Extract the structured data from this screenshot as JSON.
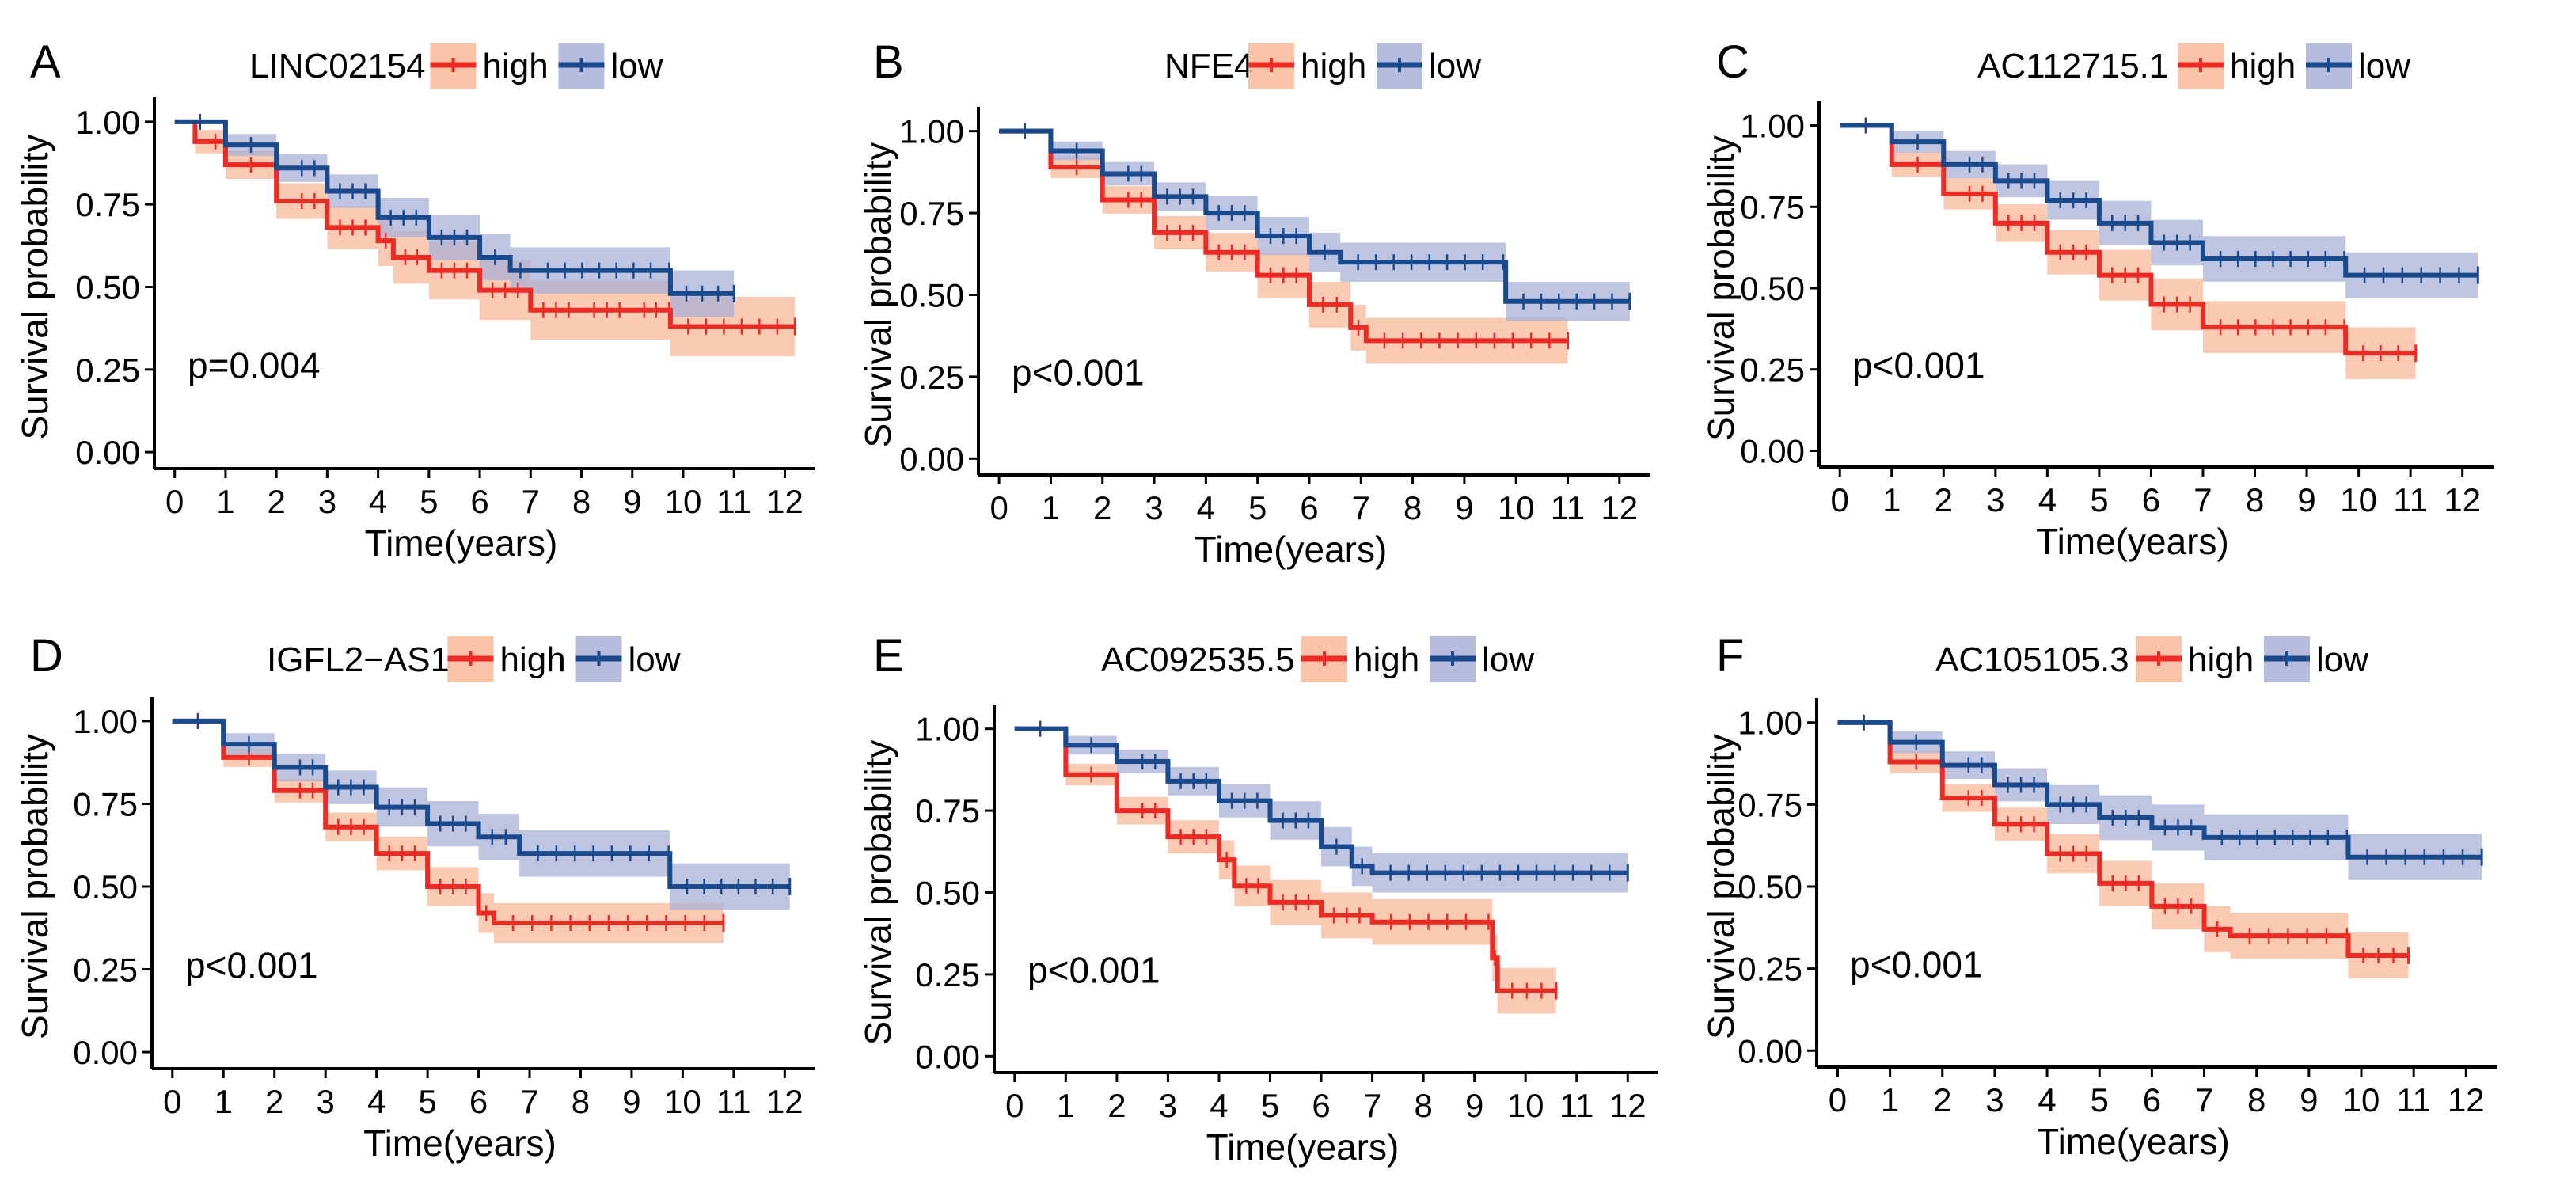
{
  "figure": {
    "xlabel": "Time(years)",
    "ylabel": "Survival probability"
  },
  "colors": {
    "high_line": "#ee2a24",
    "high_band": "#f8b898",
    "low_line": "#1a4a8e",
    "low_band": "#aab0d6",
    "axis": "#000000"
  },
  "chart_data": [
    {
      "type": "line",
      "panel_label": "A",
      "gene": "LINC02154",
      "legend": {
        "high": "high",
        "low": "low"
      },
      "p_value": "p=0.004",
      "xlabel": "Time(years)",
      "ylabel": "Survival probability",
      "xlim": [
        -0.4,
        12.6
      ],
      "ylim": [
        -0.05,
        1.05
      ],
      "xticks": [
        0,
        1,
        2,
        3,
        4,
        5,
        6,
        7,
        8,
        9,
        10,
        11,
        12
      ],
      "yticks": [
        0,
        0.25,
        0.5,
        0.75,
        1.0
      ],
      "ytick_labels": [
        "0.00",
        "0.25",
        "0.50",
        "0.75",
        "1.00"
      ],
      "series": [
        {
          "name": "high",
          "end": 12.2,
          "ci": 0.09,
          "points": [
            [
              0,
              1.0
            ],
            [
              0.4,
              0.94
            ],
            [
              1,
              0.87
            ],
            [
              2,
              0.76
            ],
            [
              3,
              0.68
            ],
            [
              4,
              0.64
            ],
            [
              4.3,
              0.59
            ],
            [
              5,
              0.55
            ],
            [
              6,
              0.49
            ],
            [
              7,
              0.43
            ],
            [
              8,
              0.43
            ],
            [
              9,
              0.43
            ],
            [
              9.7,
              0.43
            ],
            [
              9.75,
              0.38
            ],
            [
              12.2,
              0.38
            ]
          ]
        },
        {
          "name": "low",
          "end": 11.0,
          "ci": 0.07,
          "points": [
            [
              0,
              1.0
            ],
            [
              1,
              0.93
            ],
            [
              2,
              0.86
            ],
            [
              3,
              0.79
            ],
            [
              4,
              0.71
            ],
            [
              5,
              0.65
            ],
            [
              6,
              0.59
            ],
            [
              6.6,
              0.55
            ],
            [
              7,
              0.55
            ],
            [
              9.7,
              0.55
            ],
            [
              9.75,
              0.48
            ],
            [
              11.0,
              0.48
            ]
          ]
        }
      ]
    },
    {
      "type": "line",
      "panel_label": "B",
      "gene": "NFE4",
      "legend": {
        "high": "high",
        "low": "low"
      },
      "p_value": "p<0.001",
      "xlabel": "Time(years)",
      "ylabel": "Survival probability",
      "xlim": [
        -0.4,
        12.6
      ],
      "ylim": [
        -0.05,
        1.05
      ],
      "xticks": [
        0,
        1,
        2,
        3,
        4,
        5,
        6,
        7,
        8,
        9,
        10,
        11,
        12
      ],
      "yticks": [
        0,
        0.25,
        0.5,
        0.75,
        1.0
      ],
      "ytick_labels": [
        "0.00",
        "0.25",
        "0.50",
        "0.75",
        "1.00"
      ],
      "series": [
        {
          "name": "high",
          "end": 11.0,
          "ci": 0.07,
          "points": [
            [
              0,
              1.0
            ],
            [
              1,
              0.89
            ],
            [
              2,
              0.79
            ],
            [
              3,
              0.69
            ],
            [
              4,
              0.63
            ],
            [
              5,
              0.56
            ],
            [
              6,
              0.47
            ],
            [
              6.8,
              0.4
            ],
            [
              7.1,
              0.36
            ],
            [
              11.0,
              0.36
            ]
          ]
        },
        {
          "name": "low",
          "end": 12.2,
          "ci": 0.06,
          "points": [
            [
              0,
              1.0
            ],
            [
              1,
              0.94
            ],
            [
              2,
              0.87
            ],
            [
              3,
              0.8
            ],
            [
              4,
              0.75
            ],
            [
              5,
              0.68
            ],
            [
              6,
              0.63
            ],
            [
              6.6,
              0.6
            ],
            [
              9.7,
              0.6
            ],
            [
              9.8,
              0.48
            ],
            [
              12.2,
              0.48
            ]
          ]
        }
      ]
    },
    {
      "type": "line",
      "panel_label": "C",
      "gene": "AC112715.1",
      "legend": {
        "high": "high",
        "low": "low"
      },
      "p_value": "p<0.001",
      "xlabel": "Time(years)",
      "ylabel": "Survival probability",
      "xlim": [
        -0.4,
        12.6
      ],
      "ylim": [
        -0.05,
        1.05
      ],
      "xticks": [
        0,
        1,
        2,
        3,
        4,
        5,
        6,
        7,
        8,
        9,
        10,
        11,
        12
      ],
      "yticks": [
        0,
        0.25,
        0.5,
        0.75,
        1.0
      ],
      "ytick_labels": [
        "0.00",
        "0.25",
        "0.50",
        "0.75",
        "1.00"
      ],
      "series": [
        {
          "name": "high",
          "end": 11.1,
          "ci": 0.08,
          "points": [
            [
              0,
              1.0
            ],
            [
              1,
              0.88
            ],
            [
              2,
              0.79
            ],
            [
              3,
              0.7
            ],
            [
              4,
              0.61
            ],
            [
              5,
              0.54
            ],
            [
              6,
              0.45
            ],
            [
              7,
              0.38
            ],
            [
              9.7,
              0.38
            ],
            [
              9.75,
              0.3
            ],
            [
              11.1,
              0.3
            ]
          ]
        },
        {
          "name": "low",
          "end": 12.3,
          "ci": 0.07,
          "points": [
            [
              0,
              1.0
            ],
            [
              1,
              0.95
            ],
            [
              2,
              0.88
            ],
            [
              3,
              0.83
            ],
            [
              4,
              0.77
            ],
            [
              5,
              0.7
            ],
            [
              6,
              0.64
            ],
            [
              7,
              0.59
            ],
            [
              9.7,
              0.59
            ],
            [
              9.75,
              0.54
            ],
            [
              12.3,
              0.54
            ]
          ]
        }
      ]
    },
    {
      "type": "line",
      "panel_label": "D",
      "gene": "IGFL2−AS1",
      "legend": {
        "high": "high",
        "low": "low"
      },
      "p_value": "p<0.001",
      "xlabel": "Time(years)",
      "ylabel": "Survival probability",
      "xlim": [
        -0.4,
        12.6
      ],
      "ylim": [
        -0.05,
        1.05
      ],
      "xticks": [
        0,
        1,
        2,
        3,
        4,
        5,
        6,
        7,
        8,
        9,
        10,
        11,
        12
      ],
      "yticks": [
        0,
        0.25,
        0.5,
        0.75,
        1.0
      ],
      "ytick_labels": [
        "0.00",
        "0.25",
        "0.50",
        "0.75",
        "1.00"
      ],
      "series": [
        {
          "name": "high",
          "end": 10.8,
          "ci": 0.06,
          "points": [
            [
              0,
              1.0
            ],
            [
              1,
              0.89
            ],
            [
              2,
              0.79
            ],
            [
              3,
              0.68
            ],
            [
              4,
              0.6
            ],
            [
              5,
              0.5
            ],
            [
              6,
              0.42
            ],
            [
              6.3,
              0.39
            ],
            [
              10.8,
              0.39
            ]
          ]
        },
        {
          "name": "low",
          "end": 12.1,
          "ci": 0.07,
          "points": [
            [
              0,
              1.0
            ],
            [
              1,
              0.93
            ],
            [
              2,
              0.86
            ],
            [
              3,
              0.8
            ],
            [
              4,
              0.74
            ],
            [
              5,
              0.69
            ],
            [
              6,
              0.65
            ],
            [
              6.8,
              0.6
            ],
            [
              9.7,
              0.6
            ],
            [
              9.75,
              0.5
            ],
            [
              12.1,
              0.5
            ]
          ]
        }
      ]
    },
    {
      "type": "line",
      "panel_label": "E",
      "gene": "AC092535.5",
      "legend": {
        "high": "high",
        "low": "low"
      },
      "p_value": "p<0.001",
      "xlabel": "Time(years)",
      "ylabel": "Survival probability",
      "xlim": [
        -0.4,
        12.6
      ],
      "ylim": [
        -0.05,
        1.05
      ],
      "xticks": [
        0,
        1,
        2,
        3,
        4,
        5,
        6,
        7,
        8,
        9,
        10,
        11,
        12
      ],
      "yticks": [
        0,
        0.25,
        0.5,
        0.75,
        1.0
      ],
      "ytick_labels": [
        "0.00",
        "0.25",
        "0.50",
        "0.75",
        "1.00"
      ],
      "series": [
        {
          "name": "high",
          "end": 10.6,
          "ci": 0.07,
          "points": [
            [
              0,
              1.0
            ],
            [
              1,
              0.86
            ],
            [
              2,
              0.75
            ],
            [
              3,
              0.67
            ],
            [
              4,
              0.6
            ],
            [
              4.3,
              0.52
            ],
            [
              5,
              0.47
            ],
            [
              6,
              0.43
            ],
            [
              7,
              0.41
            ],
            [
              9.2,
              0.41
            ],
            [
              9.35,
              0.3
            ],
            [
              9.45,
              0.2
            ],
            [
              10.6,
              0.2
            ]
          ]
        },
        {
          "name": "low",
          "end": 12.0,
          "ci": 0.06,
          "points": [
            [
              0,
              1.0
            ],
            [
              1,
              0.95
            ],
            [
              2,
              0.9
            ],
            [
              3,
              0.84
            ],
            [
              4,
              0.78
            ],
            [
              5,
              0.72
            ],
            [
              6,
              0.64
            ],
            [
              6.6,
              0.58
            ],
            [
              7,
              0.56
            ],
            [
              12.0,
              0.56
            ]
          ]
        }
      ]
    },
    {
      "type": "line",
      "panel_label": "F",
      "gene": "AC105105.3",
      "legend": {
        "high": "high",
        "low": "low"
      },
      "p_value": "p<0.001",
      "xlabel": "Time(years)",
      "ylabel": "Survival probability",
      "xlim": [
        -0.4,
        12.6
      ],
      "ylim": [
        -0.05,
        1.05
      ],
      "xticks": [
        0,
        1,
        2,
        3,
        4,
        5,
        6,
        7,
        8,
        9,
        10,
        11,
        12
      ],
      "yticks": [
        0,
        0.25,
        0.5,
        0.75,
        1.0
      ],
      "ytick_labels": [
        "0.00",
        "0.25",
        "0.50",
        "0.75",
        "1.00"
      ],
      "series": [
        {
          "name": "high",
          "end": 10.9,
          "ci": 0.07,
          "points": [
            [
              0,
              1.0
            ],
            [
              1,
              0.88
            ],
            [
              2,
              0.77
            ],
            [
              3,
              0.69
            ],
            [
              4,
              0.6
            ],
            [
              5,
              0.51
            ],
            [
              6,
              0.44
            ],
            [
              7,
              0.37
            ],
            [
              7.5,
              0.35
            ],
            [
              9.7,
              0.35
            ],
            [
              9.75,
              0.29
            ],
            [
              10.9,
              0.29
            ]
          ]
        },
        {
          "name": "low",
          "end": 12.3,
          "ci": 0.07,
          "points": [
            [
              0,
              1.0
            ],
            [
              1,
              0.94
            ],
            [
              2,
              0.87
            ],
            [
              3,
              0.81
            ],
            [
              4,
              0.75
            ],
            [
              5,
              0.71
            ],
            [
              6,
              0.68
            ],
            [
              7,
              0.65
            ],
            [
              9.7,
              0.65
            ],
            [
              9.75,
              0.59
            ],
            [
              12.3,
              0.59
            ]
          ]
        }
      ]
    }
  ]
}
